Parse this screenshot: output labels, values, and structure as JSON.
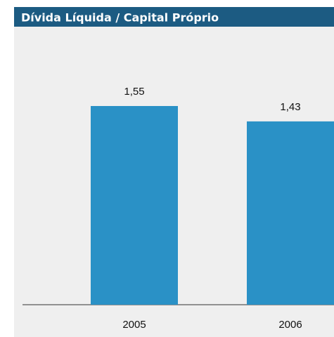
{
  "chart_data": {
    "type": "bar",
    "title": "Dívida Líquida / Capital Próprio",
    "categories": [
      "2005",
      "2006"
    ],
    "values": [
      1.55,
      1.43
    ],
    "value_labels": [
      "1,55",
      "1,43"
    ],
    "color": "#2a91c6"
  }
}
